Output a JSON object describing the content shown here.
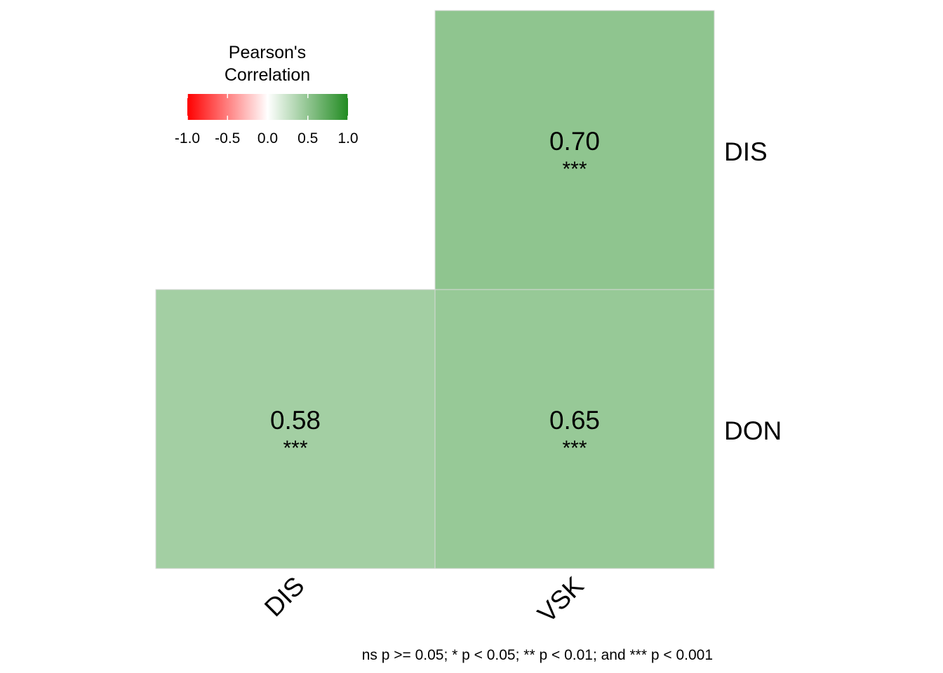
{
  "chart_data": {
    "type": "heatmap",
    "x_categories": [
      "DIS",
      "VSK"
    ],
    "y_categories": [
      "DIS",
      "DON"
    ],
    "cells": [
      {
        "x": "VSK",
        "y": "DIS",
        "value": 0.7,
        "label": "0.70",
        "signif": "***"
      },
      {
        "x": "DIS",
        "y": "DON",
        "value": 0.58,
        "label": "0.58",
        "signif": "***"
      },
      {
        "x": "VSK",
        "y": "DON",
        "value": 0.65,
        "label": "0.65",
        "signif": "***"
      }
    ],
    "legend": {
      "title_lines": [
        "Pearson's",
        "Correlation"
      ],
      "ticks": [
        -1.0,
        -0.5,
        0.0,
        0.5,
        1.0
      ],
      "tick_labels": [
        "-1.0",
        "-0.5",
        "0.0",
        "0.5",
        "1.0"
      ],
      "range": [
        -1,
        1
      ],
      "placement": "top-left",
      "colors": {
        "low": "#FF0000",
        "mid": "#FFFFFF",
        "high": "#228B22"
      }
    },
    "caption": "ns p >= 0.05; * p < 0.05; ** p < 0.01; and *** p < 0.001"
  }
}
